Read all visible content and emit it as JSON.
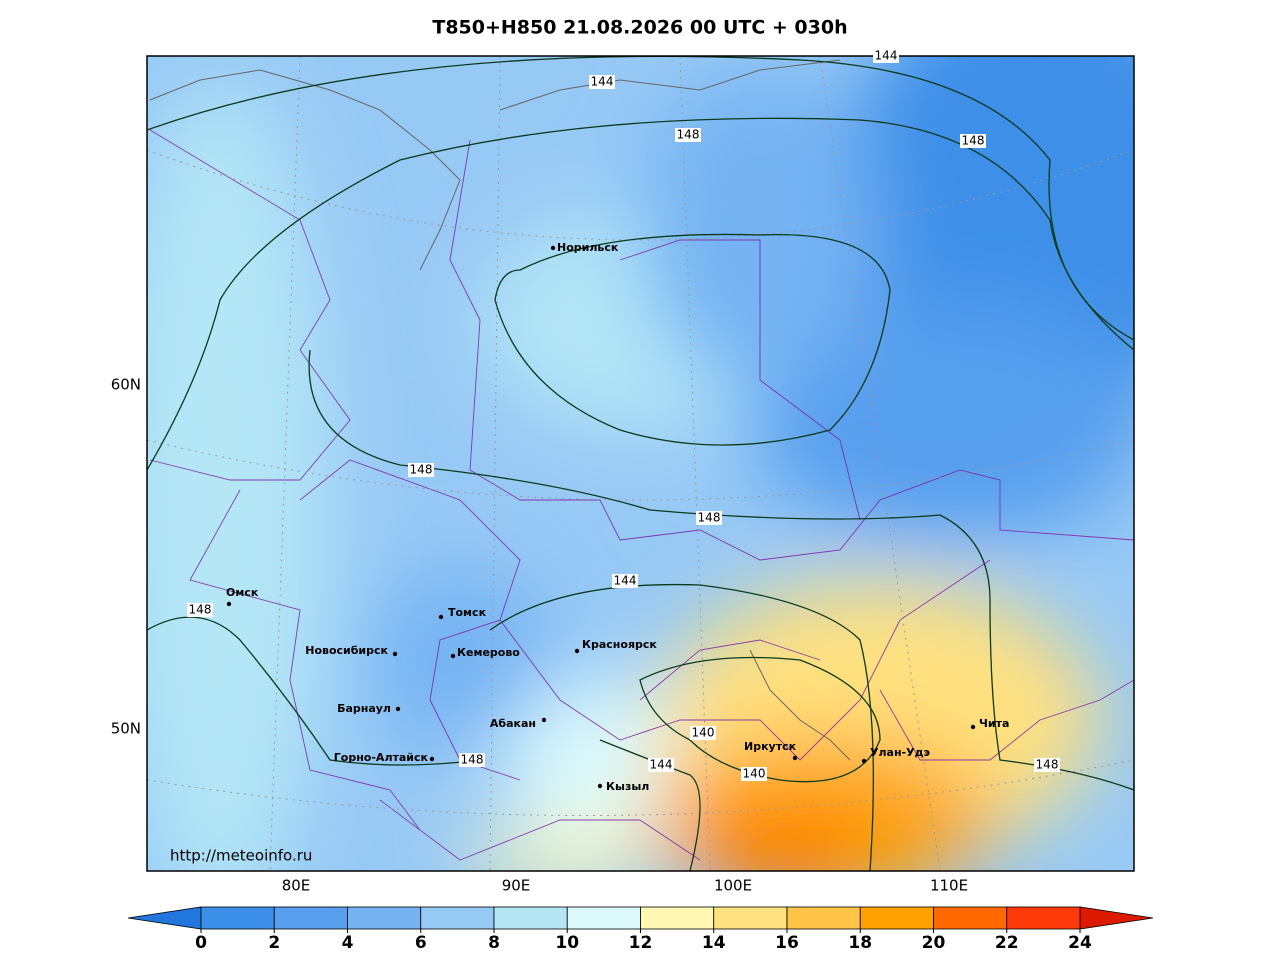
{
  "title": "T850+H850 21.08.2026 00 UTC + 030h",
  "url": "http://meteoinfo.ru",
  "lat_labels": [
    "60N",
    "50N"
  ],
  "lon_labels": [
    "80E",
    "90E",
    "100E",
    "110E"
  ],
  "cities": [
    "Норильск",
    "Омск",
    "Томск",
    "Новосибирск",
    "Кемерово",
    "Красноярск",
    "Барнаул",
    "Абакан",
    "Горно-Алтайск",
    "Кызыл",
    "Иркутск",
    "Улан-Удэ",
    "Чита"
  ],
  "contour_labels": [
    144,
    148,
    148,
    144,
    148,
    148,
    144,
    148,
    148,
    140,
    144,
    140,
    148
  ],
  "colorbar": {
    "ticks": [
      0,
      2,
      4,
      6,
      8,
      10,
      12,
      14,
      16,
      18,
      20,
      22,
      24
    ],
    "colors": [
      "#3c8fe8",
      "#579fee",
      "#75b3f3",
      "#97c9f5",
      "#b4e6f6",
      "#dcfafc",
      "#fff8b4",
      "#ffe17f",
      "#ffc548",
      "#ffa100",
      "#ff6900",
      "#ff3a0a"
    ],
    "under_color": "#2277dd",
    "over_color": "#dd1a00"
  }
}
